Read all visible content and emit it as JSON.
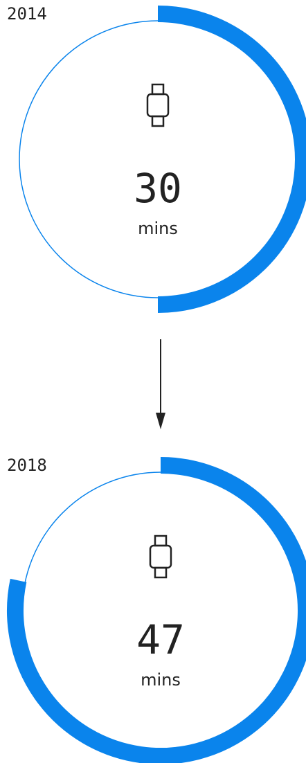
{
  "chart_data": [
    {
      "type": "gauge",
      "title": "2014",
      "values": [
        30
      ],
      "unit": "mins",
      "ylim": [
        0,
        60
      ],
      "color": "#0a84ec"
    },
    {
      "type": "gauge",
      "title": "2018",
      "values": [
        47
      ],
      "unit": "mins",
      "ylim": [
        0,
        60
      ],
      "color": "#0a84ec"
    }
  ]
}
